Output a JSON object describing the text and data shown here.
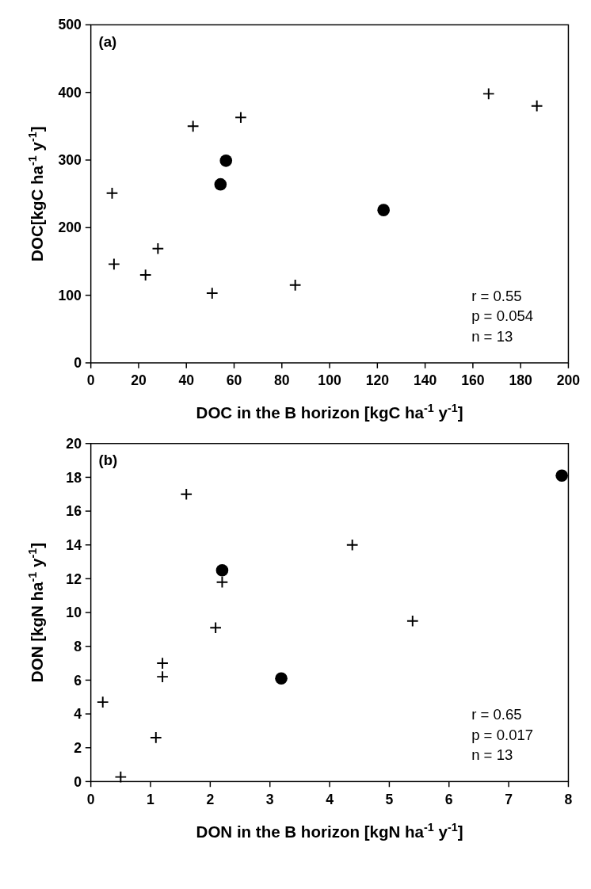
{
  "chart_data": [
    {
      "type": "scatter",
      "xlabel": "DOC in the B horizon [kgC ha$^{-1}$ y$^{-1}$]",
      "ylabel": "DOC[kgC ha$^{-1}$ y$^{-1}$]",
      "xlim": [
        0,
        200
      ],
      "ylim": [
        0,
        500
      ],
      "xticks": [
        0,
        20,
        40,
        60,
        80,
        100,
        120,
        140,
        160,
        180,
        200
      ],
      "yticks": [
        0,
        100,
        200,
        300,
        400,
        500
      ],
      "annotations": [
        "(a)",
        "r = 0.55",
        "p = 0.054",
        "n = 13"
      ],
      "series": [
        {
          "color": "#000000",
          "marker": "cross",
          "x": [
            8.9,
            9.7,
            22.9,
            28.1,
            42.8,
            50.8,
            62.8,
            85.6,
            166.6,
            186.8
          ],
          "values": [
            251,
            146,
            130,
            169,
            350,
            103,
            363,
            115,
            398,
            380
          ]
        },
        {
          "color": "#000000",
          "marker": "circle",
          "x": [
            54.3,
            56.6,
            122.6
          ],
          "values": [
            264,
            299,
            226
          ]
        }
      ]
    },
    {
      "type": "scatter",
      "xlabel": "DON in the B horizon [kgN ha$^{-1}$ y$^{-1}$]",
      "ylabel": "DON [kgN ha$^{-1}$ y$^{-1}$]",
      "xlim": [
        0,
        8
      ],
      "ylim": [
        0,
        20
      ],
      "xticks": [
        0,
        1,
        2,
        3,
        4,
        5,
        6,
        7,
        8
      ],
      "yticks": [
        0,
        2,
        4,
        6,
        8,
        10,
        12,
        14,
        16,
        18,
        20
      ],
      "annotations": [
        "(b)",
        "r = 0.65",
        "p = 0.017",
        "n = 13"
      ],
      "series": [
        {
          "color": "#000000",
          "marker": "cross",
          "x": [
            0.2,
            0.5,
            1.09,
            1.2,
            1.2,
            1.6,
            2.09,
            2.2,
            4.38,
            5.39
          ],
          "values": [
            4.7,
            0.27,
            2.6,
            7.0,
            6.2,
            17.0,
            9.1,
            11.8,
            14.0,
            9.5
          ]
        },
        {
          "color": "#000000",
          "marker": "circle",
          "x": [
            2.2,
            3.19,
            7.89
          ],
          "values": [
            12.5,
            6.1,
            18.1
          ]
        }
      ]
    }
  ]
}
